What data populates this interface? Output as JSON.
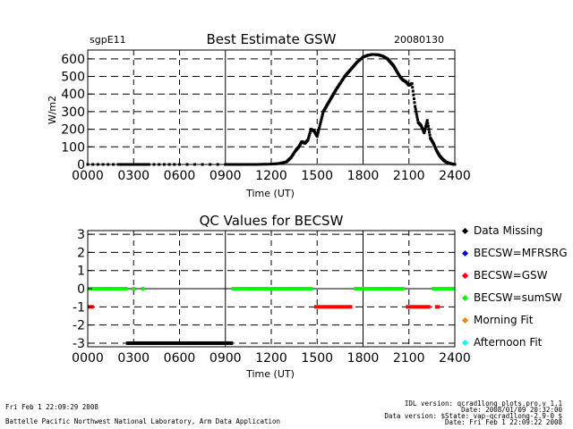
{
  "chart_data": [
    {
      "type": "scatter",
      "title": "Best Estimate GSW",
      "site": "sgpE11",
      "date": "20080130",
      "xlabel": "Time (UT)",
      "ylabel": "W/m2",
      "xlim": [
        0,
        2400
      ],
      "ylim": [
        0,
        650
      ],
      "grid": true,
      "x_ticks": [
        "0000",
        "0300",
        "0600",
        "0900",
        "1200",
        "1500",
        "1800",
        "2100",
        "2400"
      ],
      "y_ticks": [
        "0",
        "100",
        "200",
        "300",
        "400",
        "500",
        "600"
      ],
      "series": [
        {
          "color": "#000000",
          "x": [
            0,
            200,
            300,
            400,
            600,
            900,
            1000,
            1100,
            1200,
            1250,
            1300,
            1330,
            1360,
            1380,
            1400,
            1420,
            1440,
            1460,
            1480,
            1500,
            1520,
            1540,
            1560,
            1580,
            1600,
            1620,
            1650,
            1680,
            1700,
            1730,
            1760,
            1800,
            1830,
            1860,
            1900,
            1930,
            1960,
            1980,
            2000,
            2020,
            2040,
            2060,
            2080,
            2100,
            2120,
            2140,
            2160,
            2180,
            2200,
            2220,
            2240,
            2260,
            2280,
            2300,
            2320,
            2340,
            2360,
            2380,
            2400
          ],
          "y": [
            0,
            0,
            0,
            0,
            0,
            0,
            0,
            0,
            2,
            5,
            15,
            40,
            80,
            100,
            130,
            120,
            140,
            200,
            190,
            160,
            230,
            300,
            330,
            360,
            390,
            420,
            460,
            500,
            520,
            550,
            580,
            610,
            620,
            625,
            623,
            615,
            600,
            580,
            560,
            530,
            500,
            480,
            470,
            450,
            460,
            330,
            240,
            220,
            180,
            250,
            150,
            120,
            80,
            50,
            30,
            15,
            8,
            3,
            0
          ]
        }
      ]
    },
    {
      "type": "scatter",
      "title": "QC Values for BECSW",
      "xlabel": "Time (UT)",
      "ylabel": "",
      "xlim": [
        0,
        2400
      ],
      "ylim": [
        -3.2,
        3.2
      ],
      "grid": true,
      "x_ticks": [
        "0000",
        "0300",
        "0600",
        "0900",
        "1200",
        "1500",
        "1800",
        "2100",
        "2400"
      ],
      "y_ticks": [
        "-3",
        "-2",
        "-1",
        "0",
        "1",
        "2",
        "3"
      ],
      "series": [
        {
          "name": "Data Missing",
          "color": "#000000",
          "segments": [
            [
              250,
              950
            ]
          ],
          "value": -3
        },
        {
          "name": "BECSW=MFRSRG",
          "color": "#0000ff",
          "segments": [],
          "value": 1
        },
        {
          "name": "BECSW=GSW",
          "color": "#ff0000",
          "segments": [
            [
              0,
              40
            ],
            [
              1480,
              1730
            ],
            [
              2080,
              2240
            ],
            [
              2270,
              2300
            ]
          ],
          "value": -1
        },
        {
          "name": "BECSW=sumSW",
          "color": "#00ff00",
          "segments": [
            [
              0,
              260
            ],
            [
              290,
              310
            ],
            [
              350,
              370
            ],
            [
              940,
              1470
            ],
            [
              1740,
              2070
            ],
            [
              2250,
              2400
            ]
          ],
          "value": 0
        },
        {
          "name": "Morning Fit",
          "color": "#ff8000",
          "segments": [],
          "value": 0
        },
        {
          "name": "Afternoon Fit",
          "color": "#00ffff",
          "segments": [],
          "value": 0
        }
      ]
    }
  ],
  "footer": {
    "left_line1": "Fri Feb  1 22:09:29 2008",
    "left_line2": "Battelle Pacific Northwest National Laboratory, Arm Data Application",
    "right_line1": "IDL version: qcrad1long_plots.pro,v 1.1",
    "right_line2": "Date: 2008/01/09 20:32:00",
    "right_line3": "Data version: $State: vap-qcrad1long-2.9-0 $",
    "right_line4": "Date: Fri Feb  1 22:09:22 2008"
  }
}
